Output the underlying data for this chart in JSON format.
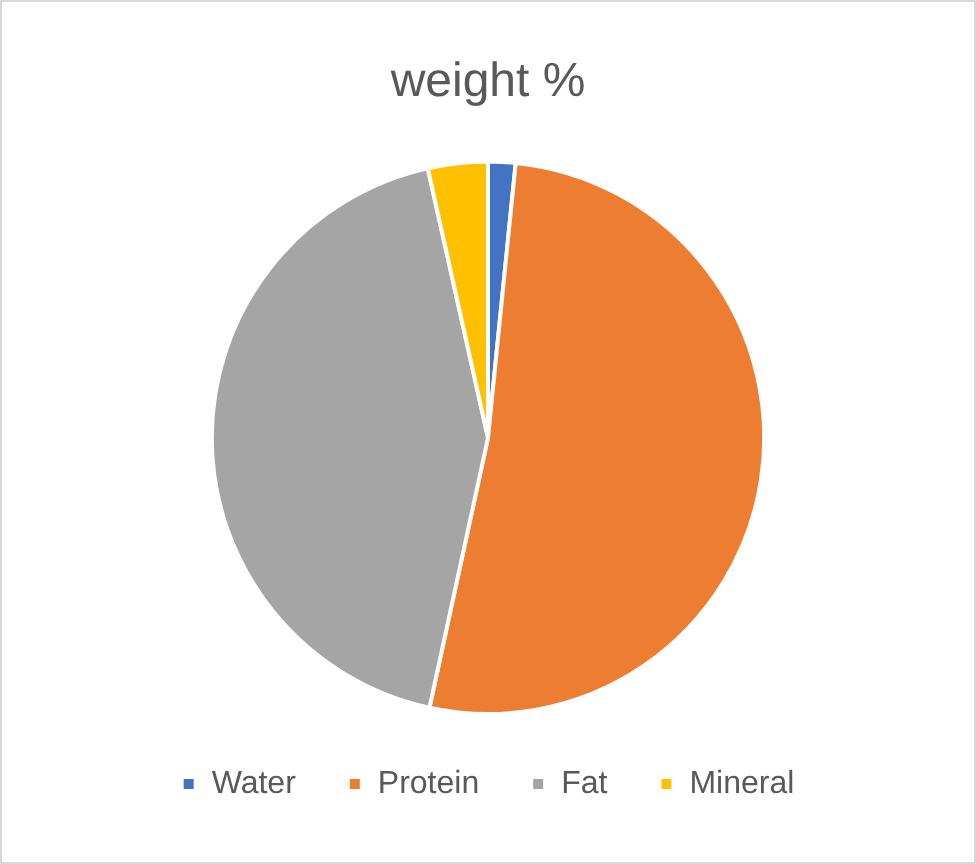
{
  "chart_data": {
    "type": "pie",
    "title": "weight %",
    "categories": [
      "Water",
      "Protein",
      "Fat",
      "Mineral"
    ],
    "values": [
      1.6,
      51.8,
      43.1,
      3.5
    ],
    "colors": [
      "#4472c4",
      "#ed7d31",
      "#a5a5a5",
      "#ffc000"
    ],
    "legend": "bottom"
  }
}
